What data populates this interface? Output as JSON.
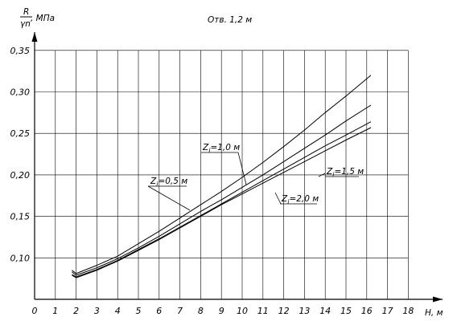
{
  "chart_data": {
    "type": "line",
    "title": "Отв. 1,2 м",
    "xlabel": "H, м",
    "ylabel": "R/γn, МПа",
    "ylabel_parts": {
      "numerator": "R",
      "denominator": "γn",
      "unit": ", МПа"
    },
    "xlim": [
      0,
      18
    ],
    "ylim": [
      0.05,
      0.35
    ],
    "x_ticks": [
      "0",
      "1",
      "2",
      "3",
      "4",
      "5",
      "6",
      "7",
      "8",
      "9",
      "10",
      "11",
      "12",
      "13",
      "14",
      "15",
      "16",
      "17",
      "18"
    ],
    "y_ticks": [
      "0,10",
      "0,15",
      "0,20",
      "0,25",
      "0,30",
      "0,35"
    ],
    "grid": true,
    "series": [
      {
        "name": "Zi=0,5 м",
        "label": {
          "base": "Z",
          "sub": "i",
          "rest": "=0,5 м"
        },
        "x": [
          1.8,
          2.0,
          3.0,
          4.0,
          5.0,
          6.0,
          7.0,
          8.0,
          9.0,
          10.0,
          11.0,
          12.0,
          13.0,
          14.0,
          15.0,
          16.2
        ],
        "y": [
          0.085,
          0.081,
          0.091,
          0.102,
          0.117,
          0.132,
          0.148,
          0.164,
          0.18,
          0.197,
          0.215,
          0.234,
          0.254,
          0.275,
          0.295,
          0.32
        ]
      },
      {
        "name": "Zi=1,0 м",
        "label": {
          "base": "Z",
          "sub": "i",
          "rest": "=1,0 м"
        },
        "x": [
          1.8,
          2.0,
          3.0,
          4.0,
          5.0,
          6.0,
          7.0,
          8.0,
          9.0,
          10.0,
          11.0,
          12.0,
          13.0,
          14.0,
          15.0,
          16.2
        ],
        "y": [
          0.083,
          0.079,
          0.088,
          0.099,
          0.112,
          0.126,
          0.141,
          0.156,
          0.17,
          0.185,
          0.2,
          0.216,
          0.232,
          0.248,
          0.265,
          0.284
        ]
      },
      {
        "name": "Zi=1,5 м",
        "label": {
          "base": "Z",
          "sub": "i",
          "rest": "=1,5 м"
        },
        "x": [
          1.8,
          2.0,
          3.0,
          4.0,
          5.0,
          6.0,
          7.0,
          8.0,
          9.0,
          10.0,
          11.0,
          12.0,
          13.0,
          14.0,
          15.0,
          16.2
        ],
        "y": [
          0.08,
          0.077,
          0.086,
          0.097,
          0.11,
          0.123,
          0.137,
          0.151,
          0.165,
          0.179,
          0.193,
          0.207,
          0.221,
          0.235,
          0.248,
          0.264
        ]
      },
      {
        "name": "Zi=2,0 м",
        "label": {
          "base": "Z",
          "sub": "i",
          "rest": "=2,0 м"
        },
        "x": [
          1.8,
          2.0,
          3.0,
          4.0,
          5.0,
          6.0,
          7.0,
          8.0,
          9.0,
          10.0,
          11.0,
          12.0,
          13.0,
          14.0,
          15.0,
          16.2
        ],
        "y": [
          0.079,
          0.076,
          0.085,
          0.096,
          0.109,
          0.122,
          0.136,
          0.15,
          0.164,
          0.177,
          0.19,
          0.203,
          0.216,
          0.229,
          0.242,
          0.257
        ]
      }
    ]
  }
}
